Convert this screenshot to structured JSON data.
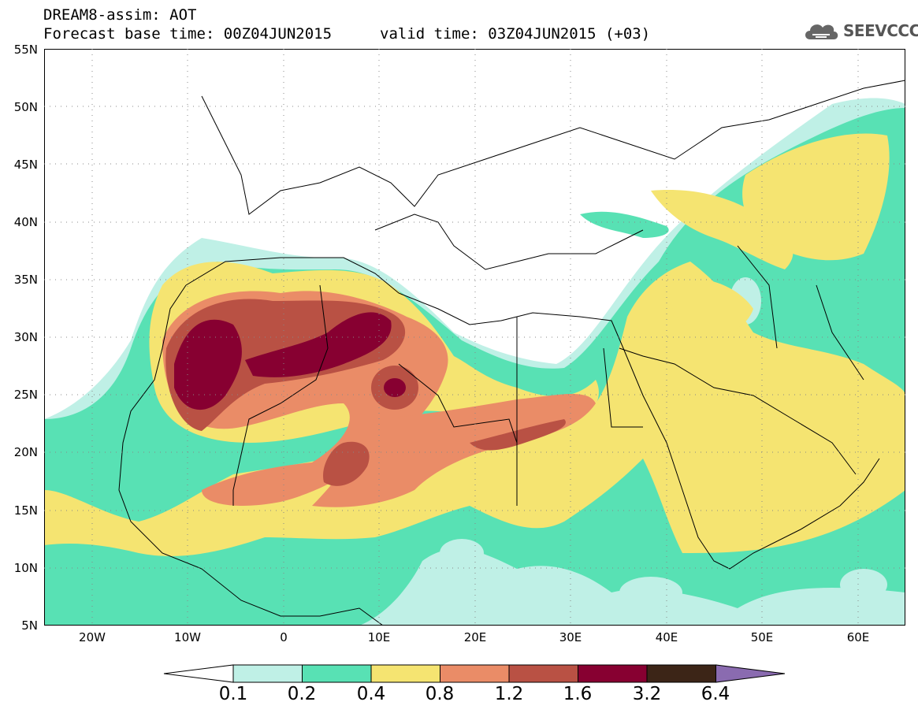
{
  "header": {
    "title": "DREAM8-assim: AOT",
    "base_time": "Forecast base time: 00Z04JUN2015",
    "valid_time": "valid time: 03Z04JUN2015 (+03)"
  },
  "logo": {
    "text": "SEEVCCC",
    "icon": "cloud-icon"
  },
  "map": {
    "type": "filled-contour-map",
    "lon_range": [
      -25,
      65
    ],
    "lat_range": [
      5,
      55
    ],
    "grid": "dotted",
    "lat_labels": [
      "55N",
      "50N",
      "45N",
      "40N",
      "35N",
      "30N",
      "25N",
      "20N",
      "15N",
      "10N",
      "5N"
    ],
    "lon_labels": [
      "20W",
      "10W",
      "0",
      "10E",
      "20E",
      "30E",
      "40E",
      "50E",
      "60E"
    ]
  },
  "colorbar": {
    "labels": [
      "0.1",
      "0.2",
      "0.4",
      "0.8",
      "1.2",
      "1.6",
      "3.2",
      "6.4"
    ],
    "colors": [
      "#ffffff",
      "#bff0e6",
      "#58e1b4",
      "#f5e471",
      "#ea8c67",
      "#b95144",
      "#870031",
      "#3c2517",
      "#8a6bb0"
    ]
  }
}
